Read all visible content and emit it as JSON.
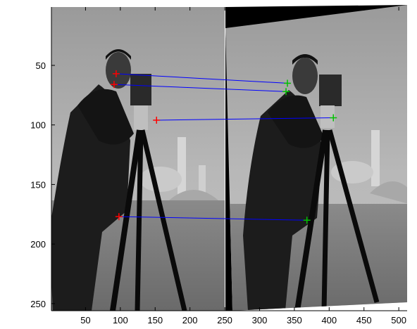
{
  "figure": {
    "x_ticks": [
      "50",
      "100",
      "150",
      "200",
      "250",
      "300",
      "350",
      "400",
      "450",
      "500"
    ],
    "y_ticks": [
      "50",
      "100",
      "150",
      "200",
      "250"
    ],
    "x_range": [
      1,
      512
    ],
    "y_range": [
      1,
      256
    ],
    "panels": [
      "left: cameraman photograph (original)",
      "right: cameraman photograph (rotated)"
    ],
    "colors": {
      "axes": "#000000",
      "match_line": "#0000ff",
      "left_marker": "#ff0000",
      "right_marker": "#00c000",
      "background": "#ffffff"
    },
    "matches": [
      {
        "left": [
          94,
          57
        ],
        "right": [
          340,
          65
        ]
      },
      {
        "left": [
          91,
          66
        ],
        "right": [
          338,
          72
        ]
      },
      {
        "left": [
          152,
          96
        ],
        "right": [
          406,
          94
        ]
      },
      {
        "left": [
          98,
          177
        ],
        "right": [
          368,
          180
        ]
      }
    ]
  }
}
